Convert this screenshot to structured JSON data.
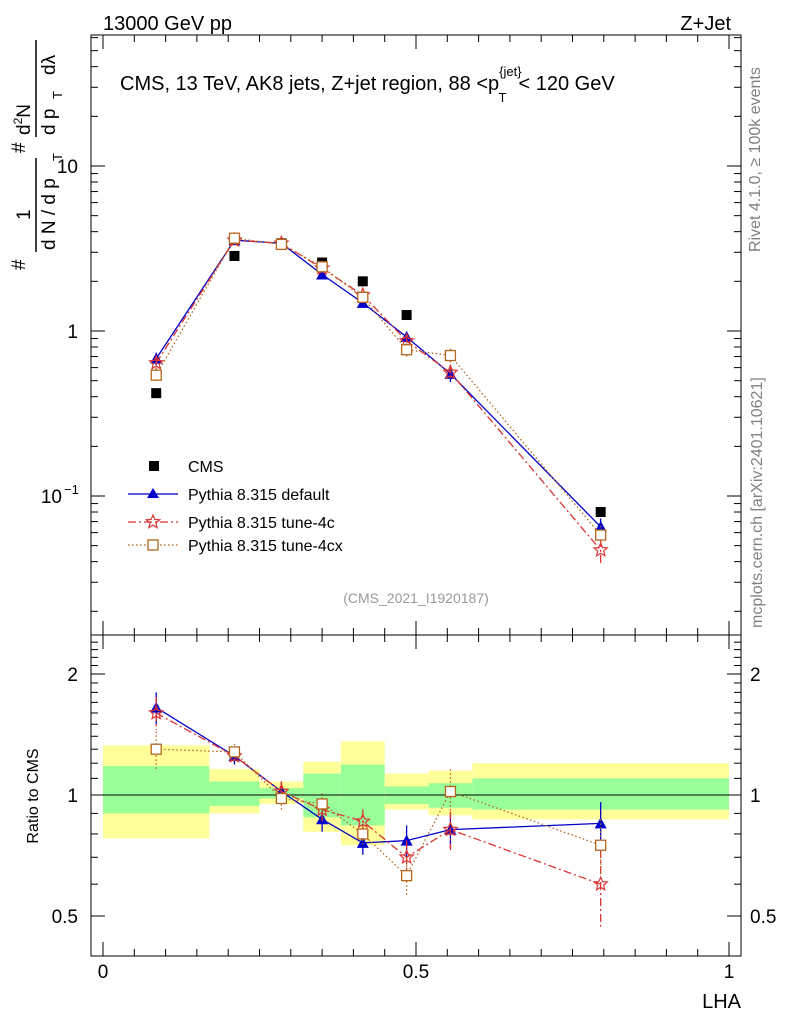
{
  "header": {
    "left": "13000 GeV pp",
    "right": "Z+Jet"
  },
  "side_text": {
    "rivet": "Rivet 4.1.0, ≥ 100k events",
    "mcplots": "mcplots.cern.ch [arXiv:2401.10621]"
  },
  "chart_data": [
    {
      "type": "scatter",
      "panel": "main",
      "title": "CMS, 13 TeV, AK8 jets, Z+jet region, 88 <p_T^{jet}< 120 GeV",
      "title_parts": {
        "a": "CMS, 13 TeV, AK8 jets, Z+jet region, 88 <p",
        "sup": "{jet}",
        "sub": "T",
        "b": "< 120 GeV"
      },
      "ylabel": "1/(dN/dp_T) d^2N/(dp_T dλ)",
      "ylabel_parts": {
        "hash1": "#",
        "one": "1",
        "dN": "d N / d p",
        "T1": "T",
        "hash2": "#",
        "d2N": "d",
        "two": "2",
        "N": "N",
        "dp": "d p",
        "T2": "T",
        "dl": "dλ"
      },
      "yscale": "log",
      "ylim": [
        0.02,
        60
      ],
      "xlim": [
        0,
        1
      ],
      "yticks": [
        {
          "v": 0.1,
          "label": "10",
          "exp": "−1"
        },
        {
          "v": 1,
          "label": "1",
          "exp": ""
        },
        {
          "v": 10,
          "label": "10",
          "exp": ""
        }
      ],
      "watermark": "(CMS_2021_I1920187)",
      "series": [
        {
          "name": "CMS",
          "color": "#000000",
          "marker": "square-filled",
          "line": "none",
          "x": [
            0.085,
            0.21,
            0.285,
            0.35,
            0.415,
            0.485,
            0.555,
            0.795
          ],
          "y": [
            0.42,
            2.85,
            3.4,
            2.6,
            2.0,
            1.25,
            0.71,
            0.08
          ]
        },
        {
          "name": "Pythia 8.315 default",
          "color": "#0000cc",
          "marker": "triangle-filled",
          "line": "solid",
          "x": [
            0.085,
            0.21,
            0.285,
            0.35,
            0.415,
            0.485,
            0.555,
            0.795
          ],
          "y": [
            0.68,
            3.55,
            3.4,
            2.2,
            1.48,
            0.92,
            0.55,
            0.065
          ],
          "err": [
            0.06,
            0.1,
            0.1,
            0.08,
            0.06,
            0.07,
            0.06,
            0.008
          ]
        },
        {
          "name": "Pythia 8.315 tune-4c",
          "color": "#dd3333",
          "marker": "star-open",
          "line": "dashdot",
          "x": [
            0.085,
            0.21,
            0.285,
            0.35,
            0.415,
            0.485,
            0.555,
            0.795
          ],
          "y": [
            0.64,
            3.55,
            3.4,
            2.4,
            1.65,
            0.87,
            0.56,
            0.047
          ],
          "err": [
            0.06,
            0.1,
            0.1,
            0.1,
            0.08,
            0.08,
            0.06,
            0.008
          ]
        },
        {
          "name": "Pythia 8.315 tune-4cx",
          "color": "#b5651d",
          "marker": "square-open",
          "line": "dotted",
          "x": [
            0.085,
            0.21,
            0.285,
            0.35,
            0.415,
            0.485,
            0.555,
            0.795
          ],
          "y": [
            0.54,
            3.65,
            3.35,
            2.45,
            1.6,
            0.77,
            0.71,
            0.058
          ],
          "err": [
            0.06,
            0.1,
            0.1,
            0.1,
            0.08,
            0.07,
            0.07,
            0.008
          ]
        }
      ]
    },
    {
      "type": "scatter",
      "panel": "ratio",
      "ylabel": "Ratio to CMS",
      "xlabel": "LHA",
      "yscale": "log",
      "ylim": [
        0.42,
        2.4
      ],
      "xlim": [
        0,
        1
      ],
      "xticks": [
        {
          "v": 0,
          "label": "0"
        },
        {
          "v": 0.5,
          "label": "0.5"
        },
        {
          "v": 1,
          "label": "1"
        }
      ],
      "yticks": [
        {
          "v": 0.5,
          "label": "0.5"
        },
        {
          "v": 1,
          "label": "1"
        },
        {
          "v": 2,
          "label": "2"
        }
      ],
      "bands": {
        "bins": [
          [
            0,
            0.17
          ],
          [
            0.17,
            0.25
          ],
          [
            0.25,
            0.32
          ],
          [
            0.32,
            0.38
          ],
          [
            0.38,
            0.45
          ],
          [
            0.45,
            0.52
          ],
          [
            0.52,
            0.59
          ],
          [
            0.59,
            1.0
          ]
        ],
        "green_up": [
          1.18,
          1.08,
          1.04,
          1.13,
          1.19,
          1.05,
          1.07,
          1.1
        ],
        "green_dn": [
          0.9,
          0.94,
          0.98,
          0.88,
          0.84,
          0.95,
          0.93,
          0.92
        ],
        "yellow_up": [
          1.33,
          1.16,
          1.08,
          1.21,
          1.36,
          1.13,
          1.15,
          1.2
        ],
        "yellow_dn": [
          0.78,
          0.9,
          0.95,
          0.81,
          0.75,
          0.92,
          0.89,
          0.87
        ],
        "green_color": "#99ff99",
        "yellow_color": "#ffff99"
      },
      "series": [
        {
          "name": "Pythia 8.315 default",
          "color": "#0000cc",
          "marker": "triangle-filled",
          "line": "solid",
          "x": [
            0.085,
            0.21,
            0.285,
            0.35,
            0.415,
            0.485,
            0.555,
            0.795
          ],
          "y": [
            1.65,
            1.25,
            1.02,
            0.87,
            0.76,
            0.77,
            0.82,
            0.85
          ],
          "err": [
            0.15,
            0.06,
            0.06,
            0.06,
            0.05,
            0.07,
            0.08,
            0.11
          ]
        },
        {
          "name": "Pythia 8.315 tune-4c",
          "color": "#dd3333",
          "marker": "star-open",
          "line": "dashdot",
          "x": [
            0.085,
            0.21,
            0.285,
            0.35,
            0.415,
            0.485,
            0.555,
            0.795
          ],
          "y": [
            1.6,
            1.25,
            1.02,
            0.92,
            0.86,
            0.7,
            0.82,
            0.6
          ],
          "err": [
            0.15,
            0.06,
            0.06,
            0.06,
            0.06,
            0.07,
            0.09,
            0.13
          ]
        },
        {
          "name": "Pythia 8.315 tune-4cx",
          "color": "#b5651d",
          "marker": "square-open",
          "line": "dotted",
          "x": [
            0.085,
            0.21,
            0.285,
            0.35,
            0.415,
            0.485,
            0.555,
            0.795
          ],
          "y": [
            1.3,
            1.28,
            0.98,
            0.95,
            0.8,
            0.63,
            1.02,
            0.75
          ],
          "err": [
            0.14,
            0.06,
            0.06,
            0.06,
            0.05,
            0.07,
            0.14,
            0.12
          ]
        }
      ]
    }
  ]
}
